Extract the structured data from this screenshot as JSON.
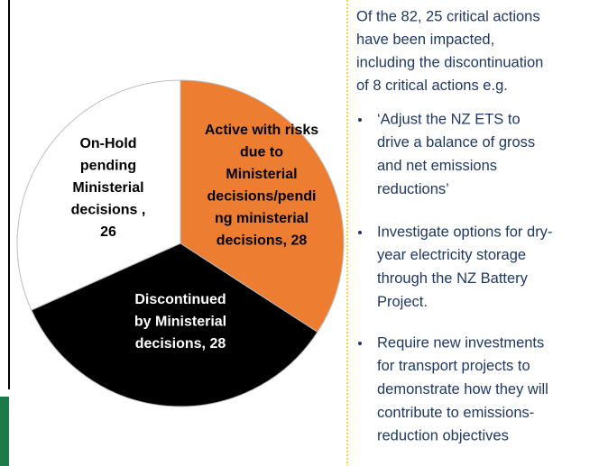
{
  "chart_data": {
    "type": "pie",
    "values": [
      28,
      28,
      26
    ],
    "colors": [
      "#ed7d31",
      "#000000",
      "#ffffff"
    ],
    "value_labels": [
      [
        "Active with risks",
        "due to",
        "Ministerial",
        "decisions/pendi",
        "ng ministerial",
        "decisions, 28"
      ],
      [
        "Discontinued",
        "by Ministerial",
        "decisions, 28"
      ],
      [
        "On-Hold",
        "pending",
        "Ministerial",
        "decisions ,",
        "26"
      ]
    ]
  },
  "notes": {
    "intro": [
      "Of the 82, 25 critical actions",
      "have been impacted,",
      "including the discontinuation",
      "of 8 critical actions e.g."
    ],
    "bullets": [
      [
        "‘Adjust the NZ ETS to",
        "drive a balance of gross",
        "and net emissions",
        "reductions’"
      ],
      [
        "Investigate options for dry-",
        "year electricity storage",
        "through the NZ Battery",
        "Project."
      ],
      [
        "Require new investments",
        "for transport projects to",
        "demonstrate how they will",
        "contribute to emissions-",
        "reduction objectives"
      ]
    ]
  }
}
